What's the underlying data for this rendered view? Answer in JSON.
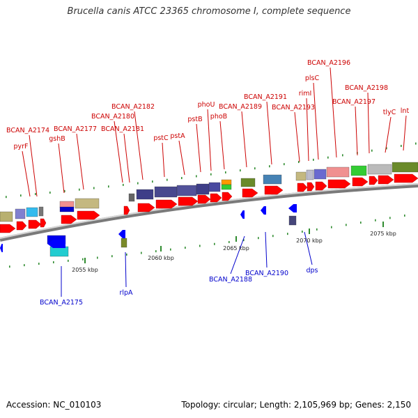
{
  "title": "Brucella canis ATCC 23365 chromosome I, complete sequence",
  "footer": {
    "accession": "Accession: NC_010103",
    "summary": "Topology: circular; Length: 2,105,969 bp; Genes: 2,150"
  },
  "colors": {
    "forward_label": "#cc0000",
    "reverse_label": "#0000cc",
    "arrow": "#ff0000",
    "arrow_reverse": "#0000ff",
    "backbone": "#999999"
  },
  "ticks": [
    {
      "label": "2055 kbp"
    },
    {
      "label": "2060 kbp"
    },
    {
      "label": "2065 kbp"
    },
    {
      "label": "2070 kbp"
    },
    {
      "label": "2075 kbp"
    }
  ],
  "forward_labels": [
    {
      "text": "pyrF"
    },
    {
      "text": "BCAN_A2174"
    },
    {
      "text": "gshB"
    },
    {
      "text": "BCAN_A2177"
    },
    {
      "text": "BCAN_A2180"
    },
    {
      "text": "BCAN_A2181"
    },
    {
      "text": "BCAN_A2182"
    },
    {
      "text": "pstC"
    },
    {
      "text": "pstA"
    },
    {
      "text": "pstB"
    },
    {
      "text": "phoU"
    },
    {
      "text": "phoB"
    },
    {
      "text": "BCAN_A2189"
    },
    {
      "text": "BCAN_A2191"
    },
    {
      "text": "BCAN_A2193"
    },
    {
      "text": "rimI"
    },
    {
      "text": "plsC"
    },
    {
      "text": "BCAN_A2196"
    },
    {
      "text": "BCAN_A2197"
    },
    {
      "text": "BCAN_A2198"
    },
    {
      "text": "tlyC"
    },
    {
      "text": "lnt"
    }
  ],
  "reverse_labels": [
    {
      "text": "BCAN_A2175"
    },
    {
      "text": "rlpA"
    },
    {
      "text": "BCAN_A2188"
    },
    {
      "text": "BCAN_A2190"
    },
    {
      "text": "dps"
    }
  ]
}
